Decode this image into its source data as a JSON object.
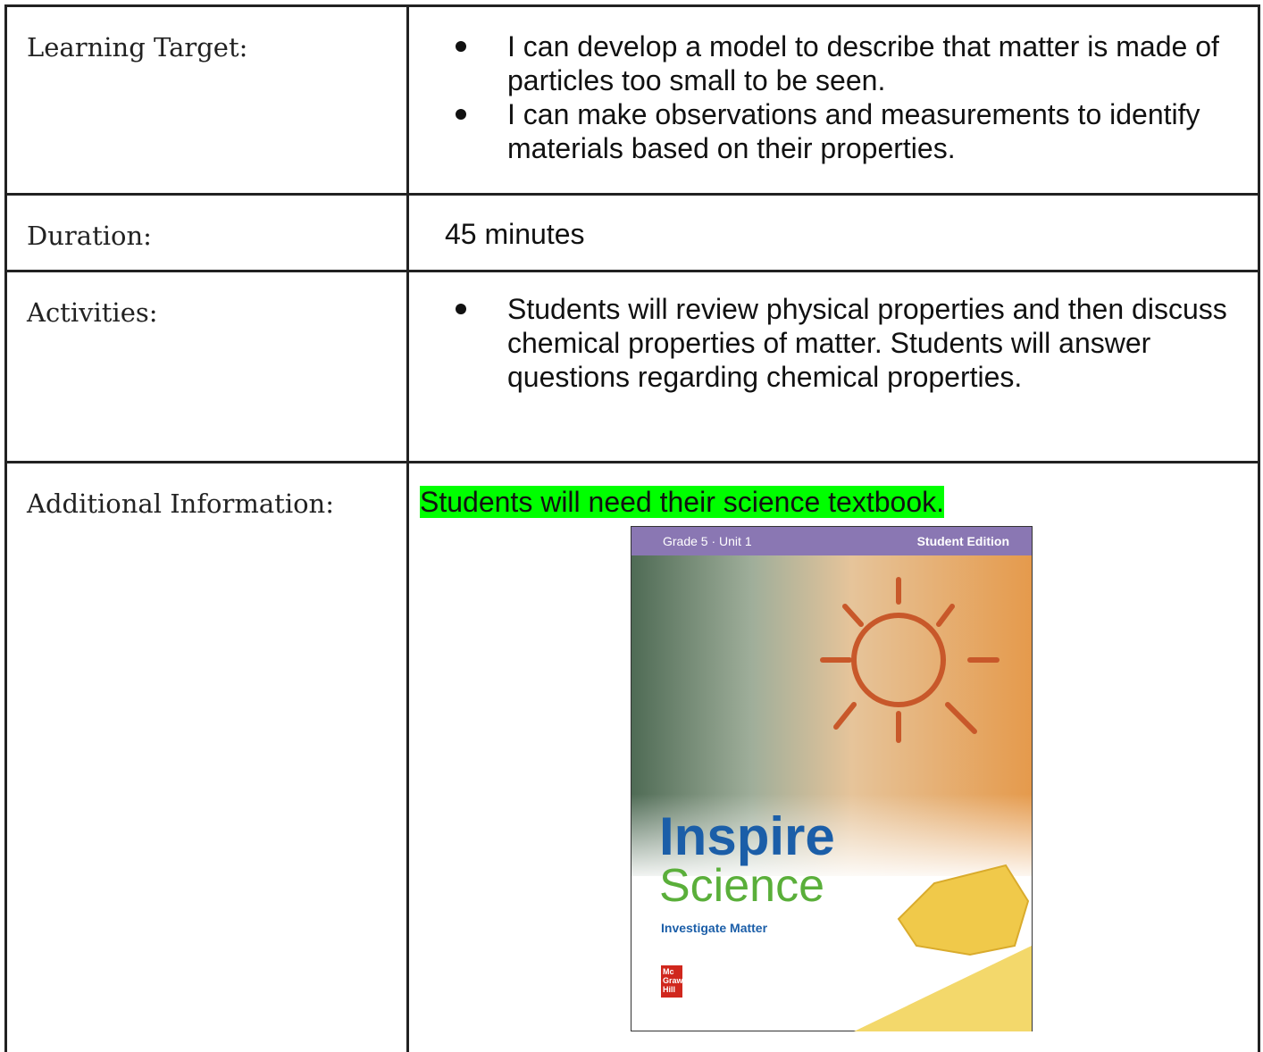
{
  "table": {
    "rows": [
      {
        "label": "Learning Target:",
        "items": [
          "I can develop a model to describe that matter is made of particles too small to be seen.",
          "I can make observations and measurements to identify materials based on their properties."
        ]
      },
      {
        "label": "Duration:",
        "text": "45 minutes"
      },
      {
        "label": "Activities:",
        "items": [
          "Students will review physical properties and then discuss chemical properties of matter. Students will answer questions regarding chemical properties."
        ]
      },
      {
        "label": "Additional Information:",
        "text": "Students will need their science textbook.",
        "image": {
          "grade": "Grade 5 · Unit 1",
          "edition": "Student Edition",
          "title_line1": "Inspire",
          "title_line2": "Science",
          "subtitle": "Investigate Matter",
          "publisher": [
            "Mc",
            "Graw",
            "Hill"
          ]
        }
      }
    ]
  }
}
